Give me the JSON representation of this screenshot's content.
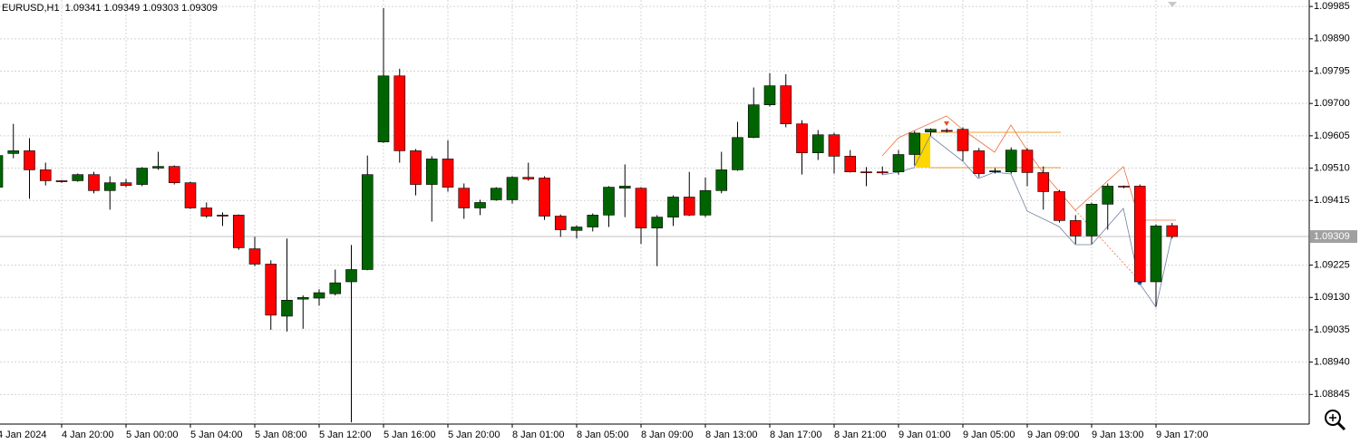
{
  "chart_data": {
    "type": "candlestick",
    "title": "EURUSD,H1  1.09341 1.09349 1.09303 1.09309",
    "categories": [
      "4 Jan 2024",
      null,
      null,
      null,
      "4 Jan 20:00",
      null,
      null,
      null,
      "5 Jan 00:00",
      null,
      null,
      null,
      "5 Jan 04:00",
      null,
      null,
      null,
      "5 Jan 08:00",
      null,
      null,
      null,
      "5 Jan 12:00",
      null,
      null,
      null,
      "5 Jan 16:00",
      null,
      null,
      null,
      "5 Jan 20:00",
      null,
      null,
      null,
      "8 Jan 01:00",
      null,
      null,
      null,
      "8 Jan 05:00",
      null,
      null,
      null,
      "8 Jan 09:00",
      null,
      null,
      null,
      "8 Jan 13:00",
      null,
      null,
      null,
      "8 Jan 17:00",
      null,
      null,
      null,
      "8 Jan 21:00",
      null,
      null,
      null,
      "9 Jan 01:00",
      null,
      null,
      null,
      "9 Jan 05:00",
      null,
      null,
      null,
      "9 Jan 09:00",
      null,
      null,
      null,
      "9 Jan 13:00",
      null,
      null,
      null,
      "9 Jan 17:00",
      null
    ],
    "open": [
      1.09454,
      1.09553,
      1.09561,
      1.09505,
      1.09473,
      1.09473,
      1.09491,
      1.09444,
      1.09467,
      1.09462,
      1.0951,
      1.09515,
      1.09467,
      1.09393,
      1.09372,
      1.09372,
      1.09273,
      1.09228,
      1.09075,
      1.09125,
      1.09128,
      1.09141,
      1.09176,
      1.09212,
      1.09587,
      1.09781,
      1.09561,
      1.09462,
      1.09537,
      1.09451,
      1.09393,
      1.09417,
      1.09417,
      1.09483,
      1.09481,
      1.09369,
      1.09327,
      1.09337,
      1.09372,
      1.09451,
      1.09451,
      1.09334,
      1.09366,
      1.09425,
      1.09372,
      1.09444,
      1.09505,
      1.096,
      1.09696,
      1.09752,
      1.0964,
      1.09555,
      1.09608,
      1.09545,
      1.09499,
      1.09499,
      1.09499,
      1.0955,
      1.09616,
      1.09621,
      1.09624,
      1.09561,
      1.09499,
      1.09499,
      1.09563,
      1.09497,
      1.09441,
      1.09356,
      1.09311,
      1.09404,
      1.09457,
      1.09457,
      1.09176,
      1.09341
    ],
    "high": [
      1.09566,
      1.0964,
      1.09598,
      1.09526,
      1.09475,
      1.09494,
      1.09499,
      1.09486,
      1.09478,
      1.09513,
      1.09558,
      1.09518,
      1.0947,
      1.09409,
      1.0938,
      1.09374,
      1.09308,
      1.09239,
      1.09303,
      1.09136,
      1.09154,
      1.09212,
      1.09284,
      1.09547,
      1.0998,
      1.09802,
      1.09566,
      1.09545,
      1.09592,
      1.09465,
      1.09417,
      1.09454,
      1.09486,
      1.09526,
      1.09486,
      1.09374,
      1.09342,
      1.09377,
      1.09457,
      1.09521,
      1.09454,
      1.09372,
      1.0943,
      1.09499,
      1.09483,
      1.09558,
      1.09646,
      1.09747,
      1.09789,
      1.09786,
      1.09651,
      1.09622,
      1.09614,
      1.09563,
      1.09513,
      1.09515,
      1.09563,
      1.09619,
      1.09627,
      1.09627,
      1.0963,
      1.09569,
      1.0951,
      1.09571,
      1.09569,
      1.09515,
      1.09446,
      1.09372,
      1.09409,
      1.09465,
      1.09459,
      1.09462,
      1.09345,
      1.09349
    ],
    "low": [
      1.09446,
      1.09539,
      1.0942,
      1.09459,
      1.09467,
      1.0947,
      1.09436,
      1.09388,
      1.09454,
      1.09457,
      1.09505,
      1.09462,
      1.0939,
      1.09364,
      1.0934,
      1.0927,
      1.09222,
      1.09035,
      1.0903,
      1.09038,
      1.09106,
      1.09136,
      1.08763,
      1.0921,
      1.09584,
      1.09526,
      1.0943,
      1.09353,
      1.09441,
      1.09361,
      1.09372,
      1.09414,
      1.09406,
      1.09473,
      1.09358,
      1.09308,
      1.09303,
      1.09324,
      1.09337,
      1.09366,
      1.09287,
      1.09222,
      1.0934,
      1.09369,
      1.09366,
      1.09436,
      1.09502,
      1.09598,
      1.09691,
      1.0963,
      1.09491,
      1.09534,
      1.09494,
      1.09497,
      1.09457,
      1.09491,
      1.09491,
      1.09518,
      1.09605,
      1.09614,
      1.09531,
      1.09483,
      1.09494,
      1.09494,
      1.09457,
      1.09388,
      1.0935,
      1.09287,
      1.09287,
      1.09329,
      1.09451,
      1.09173,
      1.09104,
      1.09303
    ],
    "close": [
      1.09547,
      1.09561,
      1.09505,
      1.09473,
      1.0947,
      1.09491,
      1.09444,
      1.09467,
      1.09459,
      1.0951,
      1.09515,
      1.09467,
      1.09393,
      1.09369,
      1.09369,
      1.09276,
      1.09228,
      1.09078,
      1.09122,
      1.0913,
      1.09144,
      1.09173,
      1.09212,
      1.09491,
      1.09781,
      1.09561,
      1.09462,
      1.09537,
      1.09454,
      1.09393,
      1.09409,
      1.09451,
      1.09483,
      1.09478,
      1.09369,
      1.09329,
      1.09337,
      1.09372,
      1.09454,
      1.09457,
      1.09334,
      1.09366,
      1.09425,
      1.09372,
      1.09444,
      1.09505,
      1.096,
      1.09696,
      1.09752,
      1.0964,
      1.09555,
      1.09608,
      1.09545,
      1.09499,
      1.09497,
      1.09496,
      1.0955,
      1.09613,
      1.09624,
      1.09618,
      1.09561,
      1.09494,
      1.09502,
      1.09563,
      1.09497,
      1.09441,
      1.09356,
      1.09311,
      1.09404,
      1.09457,
      1.09455,
      1.09176,
      1.0934,
      1.09309
    ],
    "up_color": "#006400",
    "down_color": "#ff0000",
    "ylim": [
      1.08758,
      1.10004
    ],
    "yticks": [
      1.09985,
      {
        "value": 1.0989,
        "label": "1.09890"
      },
      1.09795,
      {
        "value": 1.097,
        "label": "1.09700"
      },
      1.09605,
      {
        "value": 1.0951,
        "label": "1.09510"
      },
      1.09415,
      1.09225,
      {
        "value": 1.0913,
        "label": "1.09130"
      },
      1.09035,
      {
        "value": 1.0894,
        "label": "1.08940"
      },
      1.08845
    ],
    "grid": true
  }
}
